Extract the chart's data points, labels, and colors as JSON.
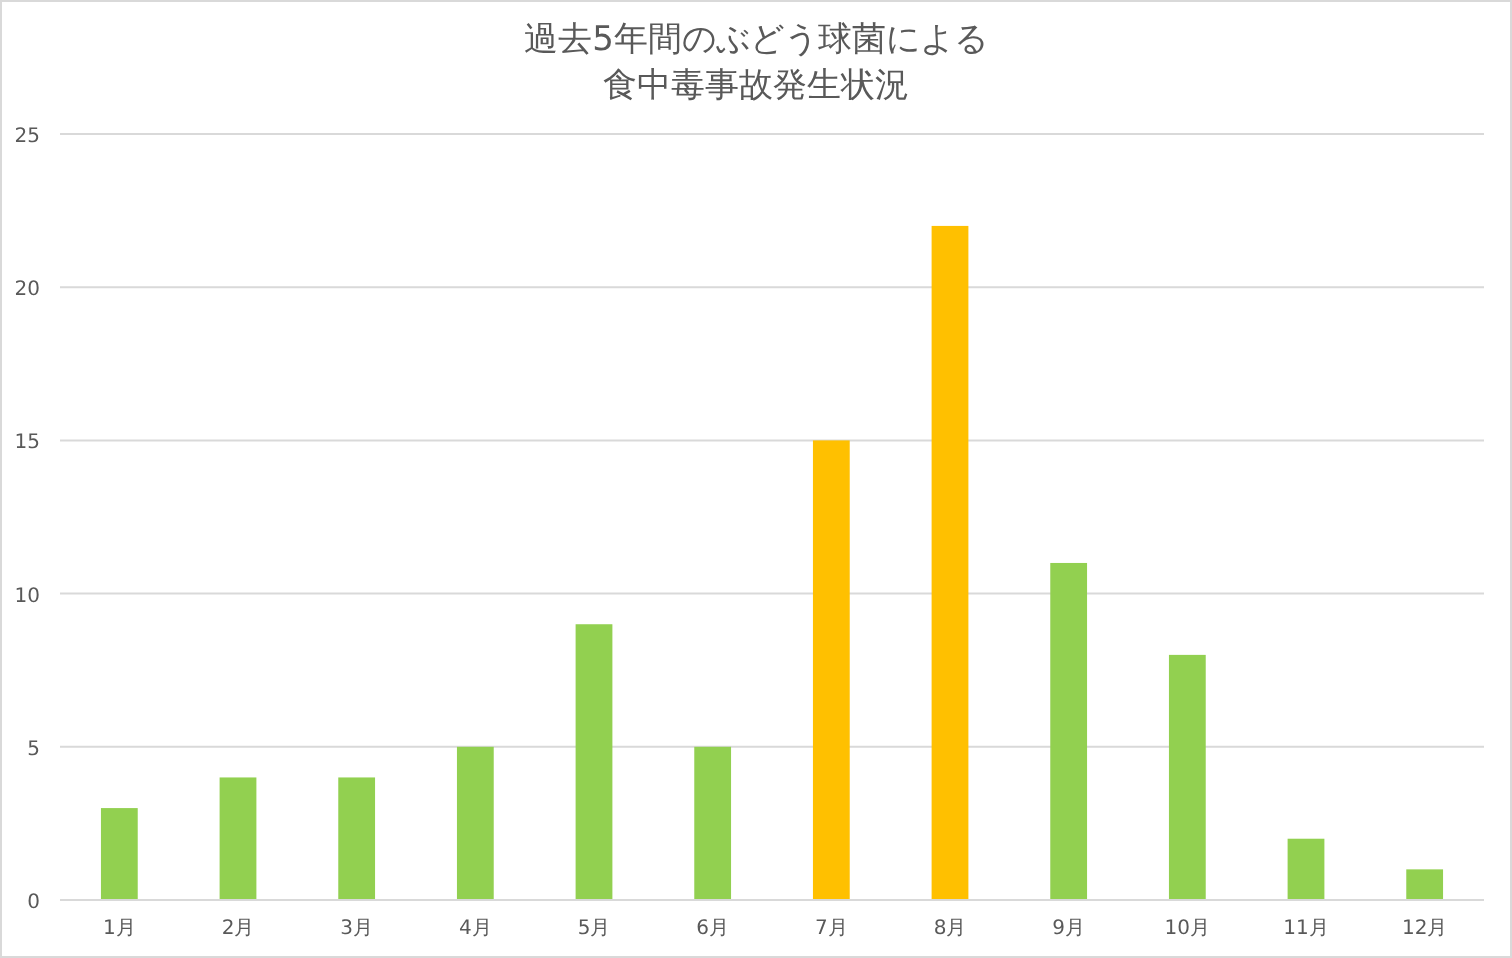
{
  "chart_data": {
    "type": "bar",
    "title": "過去5年間のぶどう球菌による食中毒事故発生状況",
    "categories": [
      "1月",
      "2月",
      "3月",
      "4月",
      "5月",
      "6月",
      "7月",
      "8月",
      "9月",
      "10月",
      "11月",
      "12月"
    ],
    "values": [
      3,
      4,
      4,
      5,
      9,
      5,
      15,
      22,
      11,
      8,
      2,
      1
    ],
    "colors": [
      "#92d050",
      "#92d050",
      "#92d050",
      "#92d050",
      "#92d050",
      "#92d050",
      "#ffc000",
      "#ffc000",
      "#92d050",
      "#92d050",
      "#92d050",
      "#92d050"
    ],
    "ylim": [
      0,
      25
    ],
    "yticks": [
      0,
      5,
      10,
      15,
      20,
      25
    ],
    "grid": "y"
  }
}
